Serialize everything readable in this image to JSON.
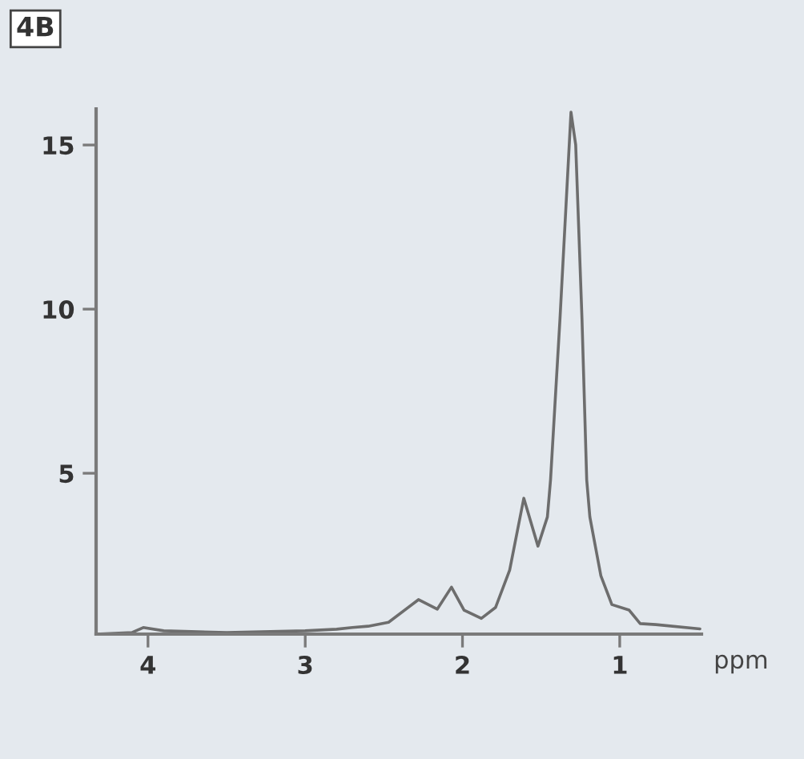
{
  "chart_data": {
    "type": "line",
    "title": "4B",
    "xlabel": "ppm",
    "xlim": [
      4.33,
      0.48
    ],
    "xticks": [
      4,
      3,
      2,
      1
    ],
    "ylim": [
      0.1,
      16.1
    ],
    "yticks": [
      5,
      10,
      15
    ],
    "grid": false,
    "legend": false,
    "marker": "none",
    "line_style": "solid",
    "series": [
      {
        "color": "#6d6d6d",
        "x": [
          4.33,
          4.1,
          4.03,
          3.9,
          3.5,
          3.0,
          2.8,
          2.7,
          2.6,
          2.47,
          2.28,
          2.16,
          2.07,
          1.99,
          1.88,
          1.79,
          1.7,
          1.61,
          1.52,
          1.46,
          1.44,
          1.38,
          1.31,
          1.28,
          1.24,
          1.21,
          1.19,
          1.12,
          1.05,
          0.94,
          0.87,
          0.77,
          0.49
        ],
        "values": [
          0.1,
          0.15,
          0.3,
          0.2,
          0.15,
          0.2,
          0.25,
          0.3,
          0.34,
          0.46,
          1.15,
          0.86,
          1.53,
          0.83,
          0.58,
          0.91,
          2.05,
          4.24,
          2.78,
          3.67,
          4.8,
          9.7,
          16.0,
          15.0,
          9.7,
          4.8,
          3.67,
          1.88,
          1.0,
          0.83,
          0.42,
          0.39,
          0.26
        ]
      }
    ]
  }
}
